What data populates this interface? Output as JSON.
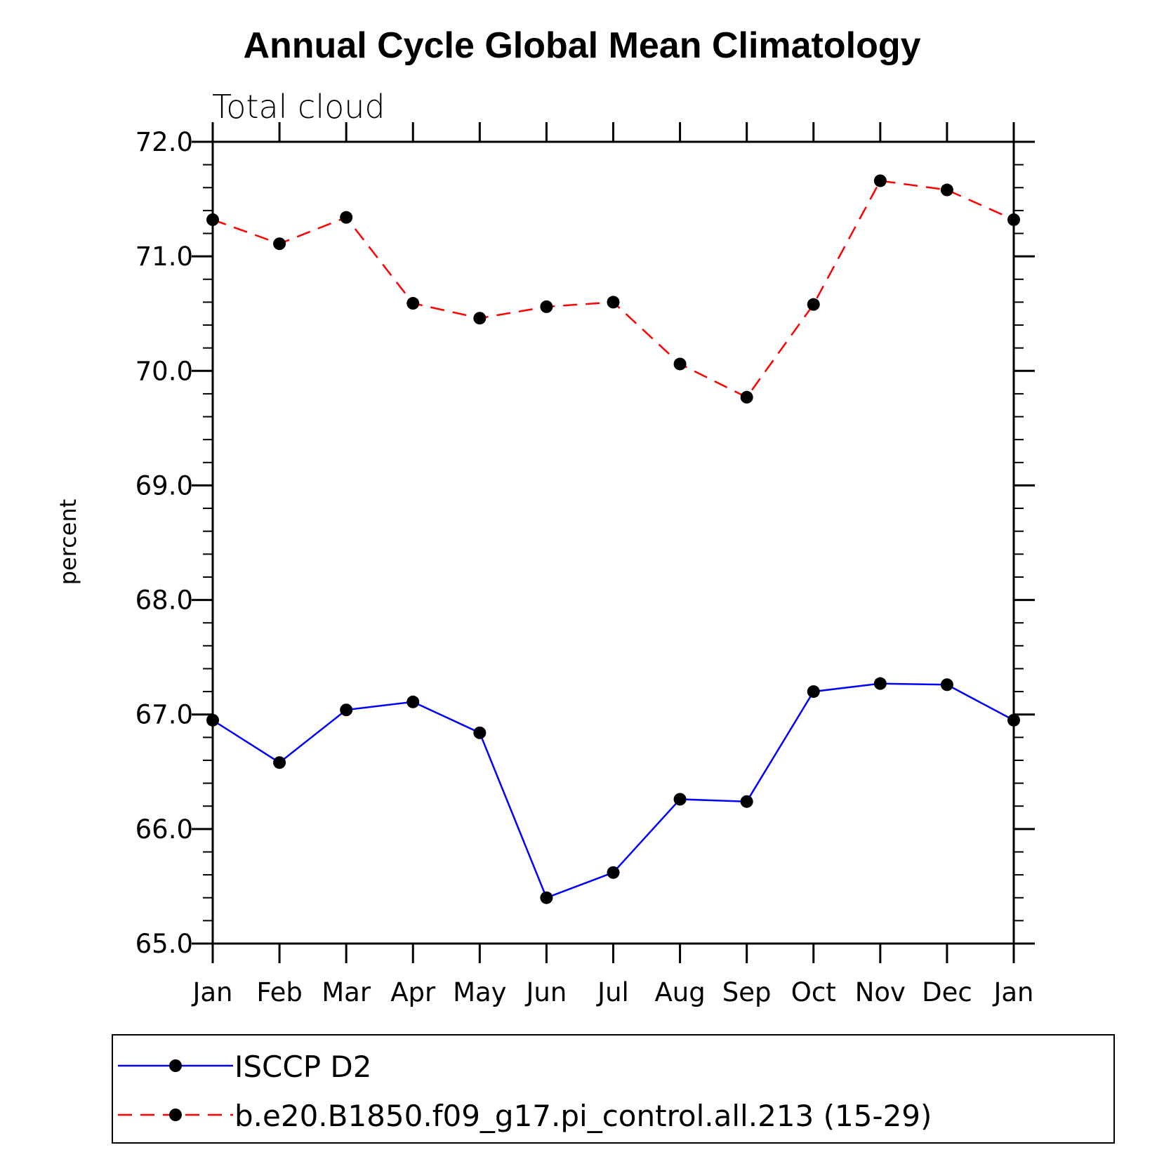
{
  "chart_data": {
    "type": "line",
    "title": "Annual Cycle Global Mean Climatology",
    "subtitle": "Total cloud",
    "xlabel": "",
    "ylabel": "percent",
    "categories": [
      "Jan",
      "Feb",
      "Mar",
      "Apr",
      "May",
      "Jun",
      "Jul",
      "Aug",
      "Sep",
      "Oct",
      "Nov",
      "Dec",
      "Jan"
    ],
    "ylim": [
      65.0,
      72.0
    ],
    "yticks": [
      "65.0",
      "66.0",
      "67.0",
      "68.0",
      "69.0",
      "70.0",
      "71.0",
      "72.0"
    ],
    "grid": false,
    "legend_position": "bottom",
    "series": [
      {
        "name": "ISCCP D2",
        "color": "#0000ff",
        "line_style": "solid",
        "marker": "filled-circle",
        "values": [
          66.95,
          66.58,
          67.04,
          67.11,
          66.84,
          65.4,
          65.62,
          66.26,
          66.24,
          67.2,
          67.27,
          67.26,
          66.95
        ]
      },
      {
        "name": "b.e20.B1850.f09_g17.pi_control.all.213 (15-29)",
        "color": "#ff0000",
        "line_style": "dashed",
        "marker": "filled-circle",
        "values": [
          71.32,
          71.11,
          71.34,
          70.59,
          70.46,
          70.56,
          70.6,
          70.06,
          69.77,
          70.58,
          71.66,
          71.58,
          71.32
        ]
      }
    ]
  }
}
